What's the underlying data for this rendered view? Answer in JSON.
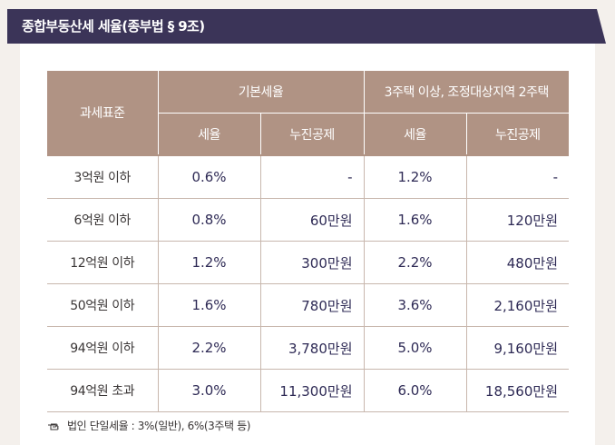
{
  "title": "종합부동산세 세율(종부법 § 9조)",
  "table": {
    "header_base": "과세표준",
    "group_basic": "기본세율",
    "group_multi": "3주택 이상, 조정대상지역 2주택",
    "sub_rate": "세율",
    "sub_deduction": "누진공제",
    "rows": [
      {
        "base": "3억원 이하",
        "rate1": "0.6%",
        "ded1": "-",
        "rate2": "1.2%",
        "ded2": "-"
      },
      {
        "base": "6억원 이하",
        "rate1": "0.8%",
        "ded1": "60만원",
        "rate2": "1.6%",
        "ded2": "120만원"
      },
      {
        "base": "12억원 이하",
        "rate1": "1.2%",
        "ded1": "300만원",
        "rate2": "2.2%",
        "ded2": "480만원"
      },
      {
        "base": "50억원 이하",
        "rate1": "1.6%",
        "ded1": "780만원",
        "rate2": "3.6%",
        "ded2": "2,160만원"
      },
      {
        "base": "94억원 이하",
        "rate1": "2.2%",
        "ded1": "3,780만원",
        "rate2": "5.0%",
        "ded2": "9,160만원"
      },
      {
        "base": "94억원 초과",
        "rate1": "3.0%",
        "ded1": "11,300만원",
        "rate2": "6.0%",
        "ded2": "18,560만원"
      }
    ]
  },
  "footnote": {
    "icon": "pointing-hand-icon",
    "text": "법인 단일세율 : 3%(일반), 6%(3주택 등)"
  }
}
